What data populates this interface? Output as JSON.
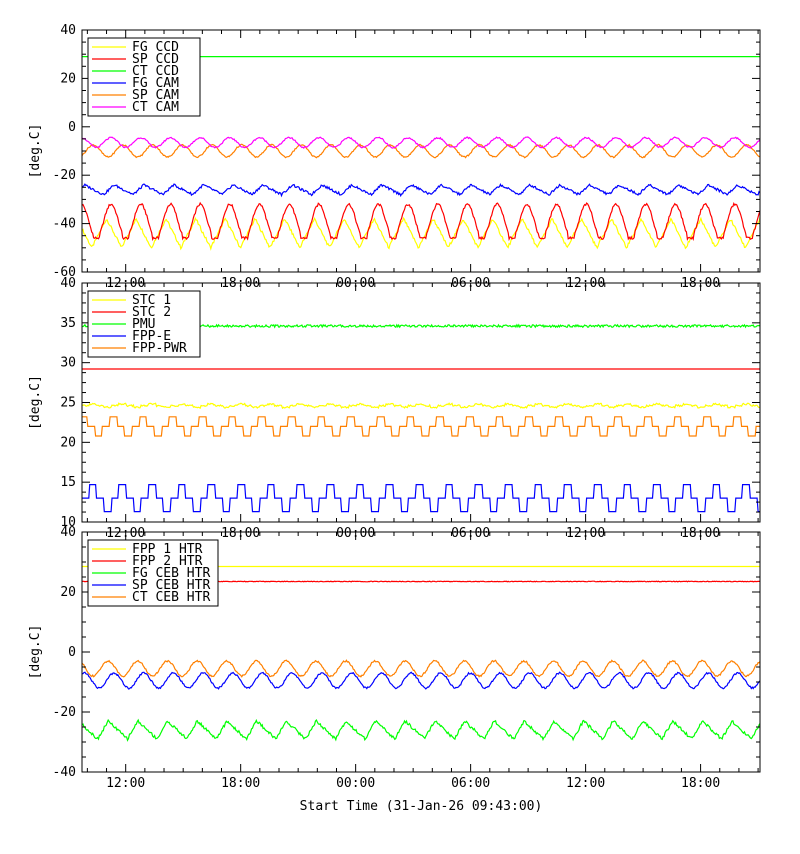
{
  "chart_data": [
    {
      "type": "line",
      "ylabel": "[deg.C]",
      "ylim": [
        -60,
        40
      ],
      "yticks": [
        -60,
        -40,
        -20,
        0,
        20,
        40
      ],
      "x_range": [
        9.72,
        45.1
      ],
      "xticks": [
        12,
        18,
        24,
        30,
        36,
        42
      ],
      "xtick_labels": [
        "12:00",
        "18:00",
        "00:00",
        "06:00",
        "12:00",
        "18:00"
      ],
      "legend_position": "top-left",
      "series": [
        {
          "name": "FG CCD",
          "color": "#ffff00",
          "shape": "tri",
          "base": -44,
          "amp": 6,
          "period": 1.55,
          "phase": 0.4,
          "noise": 0.6
        },
        {
          "name": "SP CCD",
          "color": "#ff0000",
          "shape": "ccd",
          "base": -39,
          "amp": 7,
          "period": 1.55,
          "phase": 0,
          "noise": 0.5
        },
        {
          "name": "CT CCD",
          "color": "#00ff00",
          "shape": "flat",
          "base": 29,
          "amp": 0,
          "period": 1,
          "phase": 0,
          "noise": 0
        },
        {
          "name": "FG CAM",
          "color": "#0000ff",
          "shape": "saw",
          "base": -26,
          "amp": 2,
          "period": 1.55,
          "phase": 0,
          "noise": 0.5
        },
        {
          "name": "SP CAM",
          "color": "#ff8000",
          "shape": "sin",
          "base": -10,
          "amp": 2.5,
          "period": 1.55,
          "phase": 0.6,
          "noise": 0.3
        },
        {
          "name": "CT CAM",
          "color": "#ff00ff",
          "shape": "sin",
          "base": -6.5,
          "amp": 2,
          "period": 1.55,
          "phase": 0,
          "noise": 0.3
        }
      ]
    },
    {
      "type": "line",
      "ylabel": "[deg.C]",
      "ylim": [
        10,
        40
      ],
      "yticks": [
        10,
        15,
        20,
        25,
        30,
        35,
        40
      ],
      "x_range": [
        9.72,
        45.1
      ],
      "xticks": [
        12,
        18,
        24,
        30,
        36,
        42
      ],
      "xtick_labels": [
        "12:00",
        "18:00",
        "00:00",
        "06:00",
        "12:00",
        "18:00"
      ],
      "legend_position": "top-left",
      "series": [
        {
          "name": "STC 1",
          "color": "#ffff00",
          "shape": "step",
          "base": 24.6,
          "amp": 0.2,
          "period": 1.55,
          "phase": 0,
          "noise": 0.1
        },
        {
          "name": "STC 2",
          "color": "#ff0000",
          "shape": "flat",
          "base": 29.2,
          "amp": 0,
          "period": 1,
          "phase": 0,
          "noise": 0
        },
        {
          "name": "PMU",
          "color": "#00ff00",
          "shape": "flat",
          "base": 34.6,
          "amp": 0,
          "period": 1,
          "phase": 0,
          "noise": 0.15
        },
        {
          "name": "FPP-E",
          "color": "#0000ff",
          "shape": "step",
          "base": 13,
          "amp": 1.7,
          "period": 1.55,
          "phase": 0,
          "noise": 0
        },
        {
          "name": "FPP-PWR",
          "color": "#ff8000",
          "shape": "step",
          "base": 22,
          "amp": 1.2,
          "period": 1.55,
          "phase": 0.3,
          "noise": 0
        }
      ]
    },
    {
      "type": "line",
      "ylabel": "[deg.C]",
      "ylim": [
        -40,
        40
      ],
      "yticks": [
        -40,
        -20,
        0,
        20,
        40
      ],
      "x_range": [
        9.72,
        45.1
      ],
      "xticks": [
        12,
        18,
        24,
        30,
        36,
        42
      ],
      "xtick_labels": [
        "12:00",
        "18:00",
        "00:00",
        "06:00",
        "12:00",
        "18:00"
      ],
      "xlabel": "Start Time (31-Jan-26 09:43:00)",
      "legend_position": "top-left",
      "series": [
        {
          "name": "FPP 1 HTR",
          "color": "#ffff00",
          "shape": "flat",
          "base": 28.5,
          "amp": 0,
          "period": 1,
          "phase": 0,
          "noise": 0
        },
        {
          "name": "FPP 2 HTR",
          "color": "#ff0000",
          "shape": "flat",
          "base": 23.5,
          "amp": 0,
          "period": 1,
          "phase": 0,
          "noise": 0.1
        },
        {
          "name": "FG CEB HTR",
          "color": "#00ff00",
          "shape": "saw",
          "base": -26,
          "amp": 3,
          "period": 1.55,
          "phase": 0.2,
          "noise": 0.5
        },
        {
          "name": "SP CEB HTR",
          "color": "#0000ff",
          "shape": "sin",
          "base": -9.5,
          "amp": 2.5,
          "period": 1.55,
          "phase": 0.9,
          "noise": 0.3
        },
        {
          "name": "CT CEB HTR",
          "color": "#ff8000",
          "shape": "sin",
          "base": -5.5,
          "amp": 2.5,
          "period": 1.55,
          "phase": 0.1,
          "noise": 0.3
        }
      ]
    }
  ]
}
